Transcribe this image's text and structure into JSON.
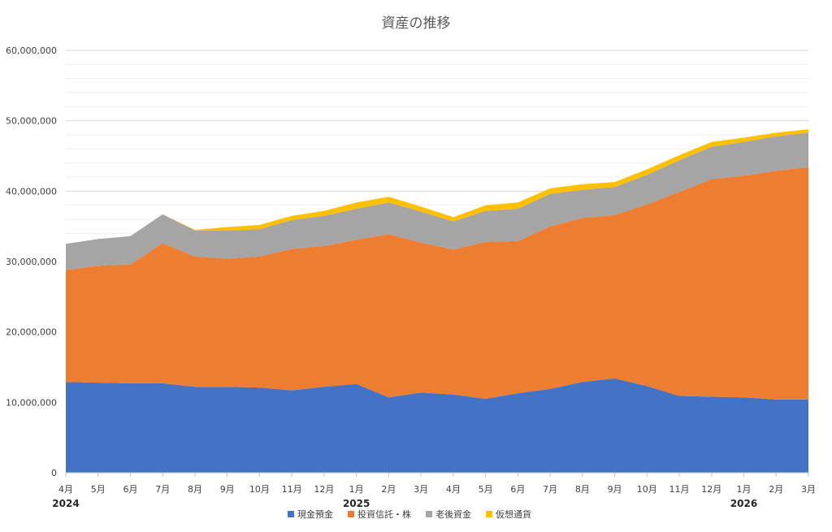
{
  "chart_data": {
    "type": "area",
    "stacked": true,
    "title": "資産の推移",
    "xlabel": "",
    "ylabel": "",
    "ylim": [
      0,
      60000000
    ],
    "y_ticks": [
      "0",
      "10,000,000",
      "20,000,000",
      "30,000,000",
      "40,000,000",
      "50,000,000",
      "60,000,000"
    ],
    "categories": [
      "4月",
      "5月",
      "6月",
      "7月",
      "8月",
      "9月",
      "10月",
      "11月",
      "12月",
      "1月",
      "2月",
      "3月",
      "4月",
      "5月",
      "6月",
      "7月",
      "8月",
      "9月",
      "10月",
      "11月",
      "12月",
      "1月",
      "2月",
      "3月"
    ],
    "year_labels": [
      {
        "label": "2024",
        "index": 0
      },
      {
        "label": "2025",
        "index": 9
      },
      {
        "label": "2026",
        "index": 21
      }
    ],
    "legend_position": "bottom",
    "series": [
      {
        "name": "現金預金",
        "color": "#4472C4",
        "values": [
          12900000,
          12800000,
          12700000,
          12700000,
          12200000,
          12200000,
          12100000,
          11700000,
          12200000,
          12600000,
          10700000,
          11400000,
          11100000,
          10500000,
          11300000,
          11900000,
          12900000,
          13400000,
          12300000,
          10900000,
          10800000,
          10700000,
          10400000,
          10400000
        ]
      },
      {
        "name": "投資信託・株",
        "color": "#ED7D31",
        "values": [
          15900000,
          16600000,
          16900000,
          19900000,
          18500000,
          18200000,
          18600000,
          20100000,
          20000000,
          20500000,
          23200000,
          21300000,
          20600000,
          22300000,
          21600000,
          23100000,
          23300000,
          23200000,
          25800000,
          29000000,
          30900000,
          31500000,
          32500000,
          33000000
        ]
      },
      {
        "name": "老後資金",
        "color": "#A5A5A5",
        "values": [
          3700000,
          3800000,
          4000000,
          4100000,
          3700000,
          4000000,
          3900000,
          4100000,
          4300000,
          4400000,
          4500000,
          4400000,
          4000000,
          4400000,
          4600000,
          4600000,
          4000000,
          4000000,
          4200000,
          4500000,
          4600000,
          4800000,
          4900000,
          4900000
        ]
      },
      {
        "name": "仮想通貨",
        "color": "#FFC000",
        "values": [
          0,
          0,
          0,
          0,
          100000,
          500000,
          600000,
          600000,
          700000,
          900000,
          800000,
          700000,
          600000,
          800000,
          900000,
          800000,
          800000,
          700000,
          800000,
          700000,
          700000,
          600000,
          500000,
          500000
        ]
      }
    ]
  }
}
